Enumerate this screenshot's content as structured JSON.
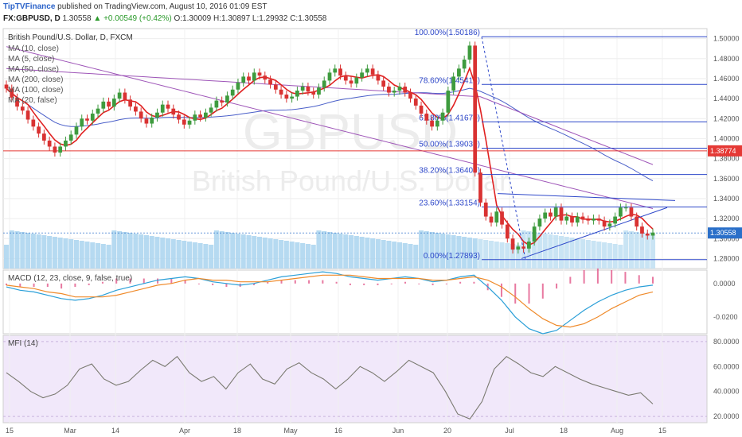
{
  "header": {
    "brand": "TipTVFinance",
    "published": "published on TradingView.com, August 10, 2016 01:09 EST",
    "symbol": "FX:GBPUSD, D",
    "last": "1.30558",
    "change": "+0.00549 (+0.42%)",
    "open": "O:1.30009",
    "high": "H:1.30897",
    "low": "L:1.29932",
    "close": "C:1.30558"
  },
  "watermark": {
    "symbol": "GBPUSD",
    "name": "British Pound/U.S. Dollar"
  },
  "legend": {
    "title": "British Pound/U.S. Dollar, D, FXCM",
    "items": [
      "MA (10, close)",
      "MA (5, close)",
      "MA (50, close)",
      "MA (200, close)",
      "MA (100, close)",
      "MA (20, false)"
    ]
  },
  "macd_label": "MACD (12, 23, close, 9, false, true)",
  "mfi_label": "MFI (14)",
  "price_axis": [
    "1.50000",
    "1.48000",
    "1.46000",
    "1.44000",
    "1.42000",
    "1.40000",
    "1.38000",
    "1.36000",
    "1.34000",
    "1.32000",
    "1.30000",
    "1.28000"
  ],
  "macd_axis": [
    "0.0000",
    "-0.0200"
  ],
  "mfi_axis": [
    "80.0000",
    "60.0000",
    "40.0000",
    "20.0000"
  ],
  "x_axis": [
    "15",
    "Mar",
    "14",
    "Apr",
    "18",
    "May",
    "16",
    "Jun",
    "20",
    "Jul",
    "18",
    "Aug",
    "15"
  ],
  "price_tags": [
    {
      "value": "1.38774",
      "color": "#e53935"
    },
    {
      "value": "1.30558",
      "color": "#2a6fc9"
    }
  ],
  "colors": {
    "up": "#3e9b3e",
    "down": "#d93232",
    "fib": "#2d47c9",
    "ma_red": "#e02020",
    "ma_purple": "#9e55b8",
    "ma_blue": "#4a5fc9"
  },
  "chart_data": [
    {
      "type": "candlestick",
      "title": "British Pound/U.S. Dollar, D, FXCM",
      "ylim": [
        1.27,
        1.51
      ],
      "x_ticks": [
        "15",
        "Mar",
        "14",
        "Apr",
        "18",
        "May",
        "16",
        "Jun",
        "20",
        "Jul",
        "18",
        "Aug",
        "15"
      ],
      "close": [
        1.45,
        1.441,
        1.432,
        1.428,
        1.419,
        1.412,
        1.405,
        1.398,
        1.392,
        1.386,
        1.392,
        1.398,
        1.404,
        1.412,
        1.42,
        1.418,
        1.425,
        1.43,
        1.437,
        1.432,
        1.44,
        1.446,
        1.439,
        1.432,
        1.427,
        1.42,
        1.415,
        1.421,
        1.426,
        1.434,
        1.43,
        1.424,
        1.419,
        1.414,
        1.418,
        1.424,
        1.421,
        1.426,
        1.431,
        1.438,
        1.436,
        1.443,
        1.449,
        1.456,
        1.462,
        1.458,
        1.466,
        1.463,
        1.459,
        1.454,
        1.449,
        1.444,
        1.44,
        1.442,
        1.448,
        1.452,
        1.447,
        1.444,
        1.451,
        1.458,
        1.466,
        1.47,
        1.463,
        1.458,
        1.455,
        1.461,
        1.466,
        1.47,
        1.464,
        1.458,
        1.452,
        1.446,
        1.448,
        1.452,
        1.446,
        1.44,
        1.433,
        1.425,
        1.418,
        1.412,
        1.418,
        1.426,
        1.448,
        1.462,
        1.47,
        1.479,
        1.493,
        1.366,
        1.336,
        1.322,
        1.316,
        1.327,
        1.314,
        1.3,
        1.289,
        1.292,
        1.29,
        1.297,
        1.312,
        1.32,
        1.326,
        1.322,
        1.331,
        1.318,
        1.322,
        1.316,
        1.322,
        1.319,
        1.318,
        1.32,
        1.318,
        1.312,
        1.315,
        1.322,
        1.331,
        1.331,
        1.322,
        1.312,
        1.305,
        1.303,
        1.306
      ],
      "fib": [
        {
          "label": "100.00%(1.50186)",
          "value": 1.50186
        },
        {
          "label": "78.60%(1.45415)",
          "value": 1.45415
        },
        {
          "label": "61.80%(1.41670)",
          "value": 1.4167
        },
        {
          "label": "50.00%(1.39039)",
          "value": 1.39039
        },
        {
          "label": "38.20%(1.36409)",
          "value": 1.36409
        },
        {
          "label": "23.60%(1.33154)",
          "value": 1.33154
        },
        {
          "label": "0.00%(1.27893)",
          "value": 1.27893
        }
      ],
      "horizontal_lines": [
        1.38774,
        1.30558
      ],
      "moving_averages": [
        "MA (10, close)",
        "MA (5, close)",
        "MA (50, close)",
        "MA (200, close)",
        "MA (100, close)",
        "MA (20, false)"
      ]
    },
    {
      "type": "line",
      "title": "MACD (12, 23, close, 9, false, true)",
      "ylim": [
        -0.03,
        0.008
      ],
      "macd": [
        -0.002,
        -0.004,
        -0.005,
        -0.007,
        -0.009,
        -0.01,
        -0.009,
        -0.007,
        -0.004,
        -0.002,
        0.0,
        0.002,
        0.003,
        0.004,
        0.003,
        0.001,
        0.0,
        -0.001,
        0.0,
        0.002,
        0.004,
        0.005,
        0.006,
        0.007,
        0.006,
        0.004,
        0.003,
        0.002,
        0.003,
        0.004,
        0.003,
        0.001,
        0.002,
        0.004,
        0.005,
        -0.002,
        -0.01,
        -0.02,
        -0.027,
        -0.03,
        -0.028,
        -0.022,
        -0.016,
        -0.011,
        -0.007,
        -0.004,
        -0.002,
        -0.001
      ],
      "signal": [
        -0.001,
        -0.002,
        -0.003,
        -0.005,
        -0.006,
        -0.008,
        -0.008,
        -0.008,
        -0.007,
        -0.005,
        -0.003,
        -0.001,
        0.0,
        0.002,
        0.003,
        0.002,
        0.002,
        0.001,
        0.001,
        0.001,
        0.002,
        0.003,
        0.004,
        0.005,
        0.005,
        0.005,
        0.004,
        0.003,
        0.003,
        0.003,
        0.003,
        0.002,
        0.002,
        0.003,
        0.004,
        0.002,
        -0.002,
        -0.008,
        -0.015,
        -0.021,
        -0.025,
        -0.026,
        -0.024,
        -0.02,
        -0.015,
        -0.011,
        -0.007,
        -0.005
      ]
    },
    {
      "type": "line",
      "title": "MFI (14)",
      "ylim": [
        15,
        85
      ],
      "values": [
        55,
        48,
        40,
        35,
        38,
        45,
        58,
        62,
        50,
        45,
        48,
        57,
        65,
        60,
        68,
        55,
        48,
        52,
        42,
        55,
        62,
        50,
        46,
        58,
        63,
        55,
        50,
        42,
        50,
        60,
        55,
        48,
        56,
        65,
        60,
        55,
        40,
        22,
        18,
        32,
        58,
        68,
        62,
        55,
        52,
        60,
        55,
        50,
        46,
        43,
        40,
        37,
        39,
        30
      ]
    }
  ]
}
